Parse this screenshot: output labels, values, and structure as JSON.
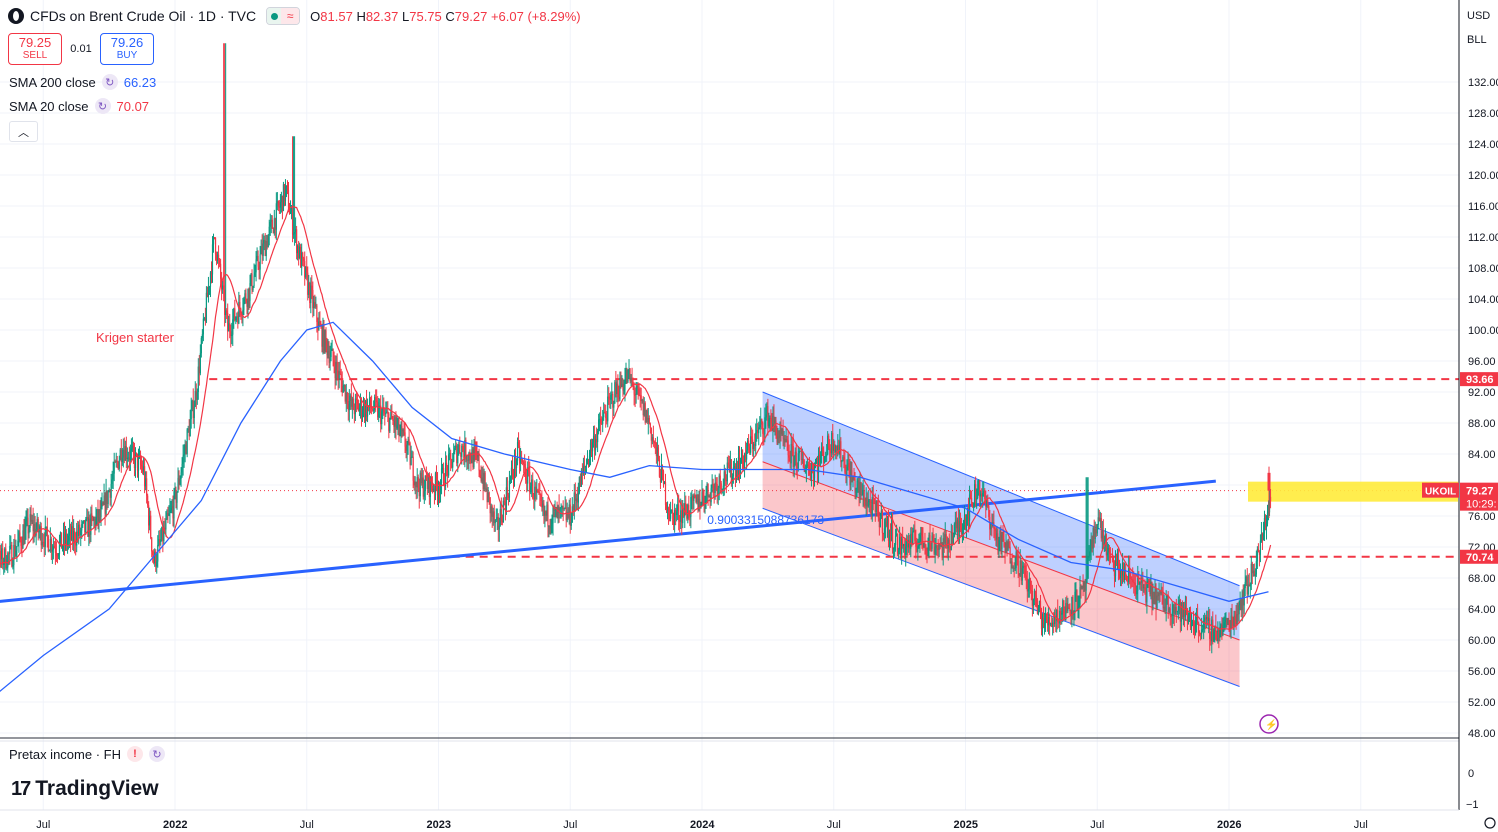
{
  "header": {
    "title": "CFDs on Brent Crude Oil · 1D · TVC",
    "ohlc": [
      {
        "k": "O",
        "v": "81.57"
      },
      {
        "k": "H",
        "v": "82.37"
      },
      {
        "k": "L",
        "v": "75.75"
      },
      {
        "k": "C",
        "v": "79.27"
      },
      {
        "k": "",
        "v": "+6.07 (+8.29%)"
      }
    ]
  },
  "trade": {
    "sell_price": "79.25",
    "sell_label": "SELL",
    "spread": "0.01",
    "buy_price": "79.26",
    "buy_label": "BUY"
  },
  "indicators": {
    "sma200": {
      "label": "SMA 200 close",
      "value": "66.23",
      "color": "#2962ff"
    },
    "sma20": {
      "label": "SMA 20 close",
      "value": "70.07",
      "color": "#f23645"
    }
  },
  "pane2": {
    "label": "Pretax income · FH"
  },
  "brand": "TradingView",
  "currency": {
    "line1": "USD",
    "line2": "BLL"
  },
  "chart_data": {
    "type": "candlestick",
    "instrument": "CFDs on Brent Crude Oil",
    "interval": "1D",
    "y_range": [
      47,
      138
    ],
    "y_ticks": [
      48,
      52,
      56,
      60,
      64,
      68,
      72,
      76,
      80,
      84,
      88,
      92,
      96,
      100,
      104,
      108,
      112,
      116,
      120,
      124,
      128,
      132
    ],
    "y_tick_labels": [
      "48.00",
      "52.00",
      "56.00",
      "60.00",
      "64.00",
      "68.00",
      "72.00",
      "76.00",
      "80.00",
      "84.00",
      "88.00",
      "92.00",
      "96.00",
      "100.00",
      "104.00",
      "108.00",
      "112.00",
      "116.00",
      "120.00",
      "124.00",
      "128.00",
      "132.00"
    ],
    "x_ticks": [
      {
        "t": 2021.5,
        "label": "Jul"
      },
      {
        "t": 2022.0,
        "label": "2022"
      },
      {
        "t": 2022.5,
        "label": "Jul"
      },
      {
        "t": 2023.0,
        "label": "2023"
      },
      {
        "t": 2023.5,
        "label": "Jul"
      },
      {
        "t": 2024.0,
        "label": "2024"
      },
      {
        "t": 2024.5,
        "label": "Jul"
      },
      {
        "t": 2025.0,
        "label": "2025"
      },
      {
        "t": 2025.5,
        "label": "Jul"
      },
      {
        "t": 2026.0,
        "label": "2026"
      },
      {
        "t": 2026.5,
        "label": "Jul"
      }
    ],
    "x_range": [
      2021.25,
      2026.88
    ],
    "close_path": [
      [
        2021.25,
        69
      ],
      [
        2021.38,
        71
      ],
      [
        2021.45,
        75
      ],
      [
        2021.55,
        72
      ],
      [
        2021.65,
        74
      ],
      [
        2021.72,
        76
      ],
      [
        2021.8,
        85
      ],
      [
        2021.88,
        82
      ],
      [
        2021.92,
        70
      ],
      [
        2022.0,
        78
      ],
      [
        2022.08,
        92
      ],
      [
        2022.15,
        112
      ],
      [
        2022.2,
        100
      ],
      [
        2022.28,
        105
      ],
      [
        2022.33,
        110
      ],
      [
        2022.42,
        118
      ],
      [
        2022.47,
        110
      ],
      [
        2022.55,
        100
      ],
      [
        2022.6,
        96
      ],
      [
        2022.67,
        90
      ],
      [
        2022.75,
        90
      ],
      [
        2022.83,
        88
      ],
      [
        2022.88,
        85
      ],
      [
        2022.92,
        80
      ],
      [
        2023.0,
        80
      ],
      [
        2023.08,
        85
      ],
      [
        2023.15,
        83
      ],
      [
        2023.22,
        74
      ],
      [
        2023.3,
        84
      ],
      [
        2023.4,
        76
      ],
      [
        2023.5,
        76
      ],
      [
        2023.58,
        85
      ],
      [
        2023.67,
        92
      ],
      [
        2023.72,
        94
      ],
      [
        2023.8,
        88
      ],
      [
        2023.88,
        76
      ],
      [
        2023.96,
        77
      ],
      [
        2024.05,
        80
      ],
      [
        2024.15,
        83
      ],
      [
        2024.25,
        89
      ],
      [
        2024.33,
        84
      ],
      [
        2024.42,
        82
      ],
      [
        2024.5,
        86
      ],
      [
        2024.58,
        80
      ],
      [
        2024.67,
        76
      ],
      [
        2024.75,
        72
      ],
      [
        2024.83,
        73
      ],
      [
        2024.92,
        72
      ],
      [
        2025.0,
        76
      ],
      [
        2025.05,
        80
      ],
      [
        2025.12,
        73
      ],
      [
        2025.2,
        70
      ],
      [
        2025.3,
        62
      ],
      [
        2025.38,
        64
      ],
      [
        2025.45,
        66
      ],
      [
        2025.5,
        76
      ],
      [
        2025.55,
        70
      ],
      [
        2025.62,
        68
      ],
      [
        2025.7,
        66
      ],
      [
        2025.8,
        64
      ],
      [
        2025.88,
        62
      ],
      [
        2025.96,
        61
      ],
      [
        2026.02,
        63
      ],
      [
        2026.08,
        68
      ],
      [
        2026.12,
        72
      ],
      [
        2026.16,
        79.27
      ]
    ],
    "sma20": {
      "label": "SMA 20 close",
      "value": 70.07
    },
    "sma200": {
      "label": "SMA 200 close",
      "value": 66.23,
      "path": [
        [
          2021.25,
          51
        ],
        [
          2021.5,
          58
        ],
        [
          2021.75,
          64
        ],
        [
          2021.95,
          72
        ],
        [
          2022.1,
          78
        ],
        [
          2022.25,
          88
        ],
        [
          2022.4,
          96
        ],
        [
          2022.5,
          100
        ],
        [
          2022.6,
          101
        ],
        [
          2022.75,
          96
        ],
        [
          2022.9,
          90
        ],
        [
          2023.05,
          86
        ],
        [
          2023.25,
          84
        ],
        [
          2023.5,
          82
        ],
        [
          2023.65,
          81
        ],
        [
          2023.8,
          82.5
        ],
        [
          2024.0,
          82
        ],
        [
          2024.2,
          82
        ],
        [
          2024.4,
          82
        ],
        [
          2024.6,
          81
        ],
        [
          2024.8,
          79
        ],
        [
          2025.0,
          77
        ],
        [
          2025.2,
          73
        ],
        [
          2025.4,
          70
        ],
        [
          2025.6,
          69
        ],
        [
          2025.8,
          67
        ],
        [
          2026.0,
          65
        ],
        [
          2026.15,
          66.23
        ]
      ]
    },
    "annotations": [
      {
        "text": "Krigen starter",
        "t": 2021.7,
        "y": 99
      },
      {
        "text": "0.9003315088736173",
        "t": 2024.02,
        "y": 75.5
      }
    ],
    "support_line": {
      "from": [
        2021.25,
        64.7
      ],
      "to": [
        2025.95,
        80.5
      ]
    },
    "resistance_93": {
      "value": 93.66,
      "label": "93.66"
    },
    "support_70": {
      "value": 70.74,
      "label": "70.74"
    },
    "channel": {
      "upper": [
        [
          2024.23,
          92
        ],
        [
          2026.04,
          67
        ]
      ],
      "mid": [
        [
          2024.23,
          83
        ],
        [
          2026.04,
          60
        ]
      ],
      "lower": [
        [
          2024.23,
          77
        ],
        [
          2026.04,
          54
        ]
      ]
    },
    "last_price": {
      "symbol": "UKOIL",
      "value": "79.27",
      "countdown": "10:29:"
    },
    "price_line": 79.27
  },
  "price_scale_lower": [
    {
      "v": "0"
    },
    {
      "v": "−1"
    }
  ]
}
